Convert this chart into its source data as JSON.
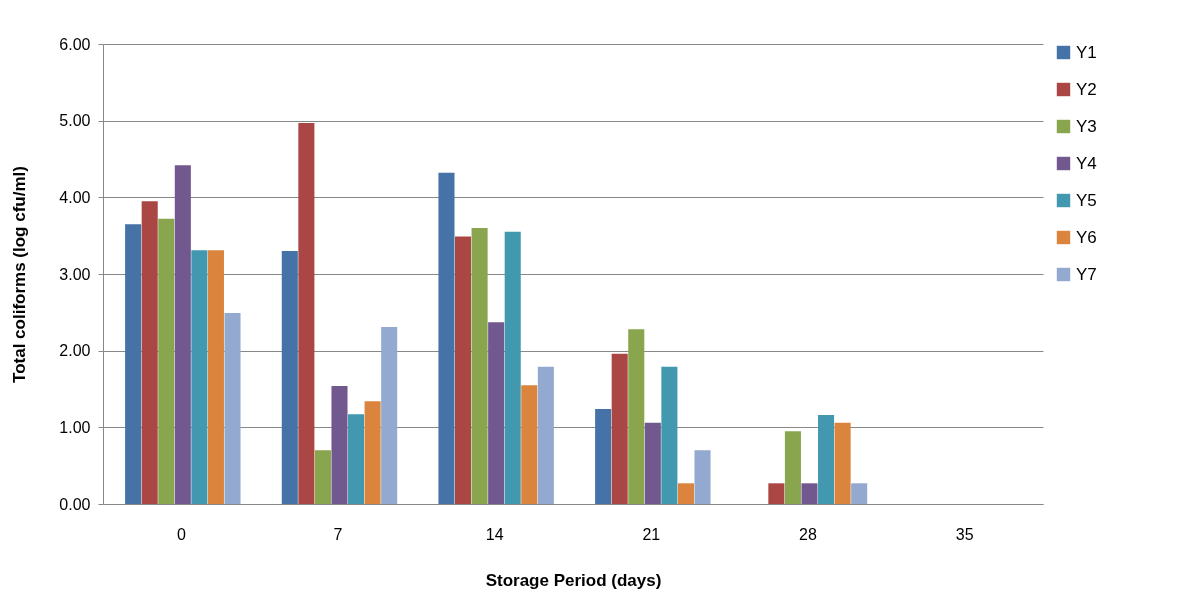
{
  "chart_data": {
    "type": "bar",
    "xlabel": "Storage Period (days)",
    "ylabel": "Total coliforms (log cfu/ml)",
    "categories": [
      "0",
      "7",
      "14",
      "21",
      "28",
      "35"
    ],
    "series": [
      {
        "name": "Y1",
        "color": "#4572a7",
        "values": [
          3.65,
          3.3,
          4.32,
          1.24,
          0,
          0
        ]
      },
      {
        "name": "Y2",
        "color": "#aa4643",
        "values": [
          3.95,
          4.97,
          3.49,
          1.96,
          0.27,
          0
        ]
      },
      {
        "name": "Y3",
        "color": "#89a54e",
        "values": [
          3.72,
          0.7,
          3.6,
          2.28,
          0.95,
          0
        ]
      },
      {
        "name": "Y4",
        "color": "#71588f",
        "values": [
          4.42,
          1.54,
          2.37,
          1.06,
          0.27,
          0
        ]
      },
      {
        "name": "Y5",
        "color": "#4198af",
        "values": [
          3.31,
          1.17,
          3.55,
          1.79,
          1.16,
          0
        ]
      },
      {
        "name": "Y6",
        "color": "#db843d",
        "values": [
          3.31,
          1.34,
          1.55,
          0.27,
          1.06,
          0
        ]
      },
      {
        "name": "Y7",
        "color": "#93a9cf",
        "values": [
          2.49,
          2.31,
          1.79,
          0.7,
          0.27,
          0
        ]
      }
    ],
    "ylim": [
      0,
      6
    ],
    "yticks": [
      {
        "value": 0,
        "label": "0.00"
      },
      {
        "value": 1,
        "label": "1.00"
      },
      {
        "value": 2,
        "label": "2.00"
      },
      {
        "value": 3,
        "label": "3.00"
      },
      {
        "value": 4,
        "label": "4.00"
      },
      {
        "value": 5,
        "label": "5.00"
      },
      {
        "value": 6,
        "label": "6.00"
      }
    ],
    "grid": "y",
    "legend": "right"
  }
}
